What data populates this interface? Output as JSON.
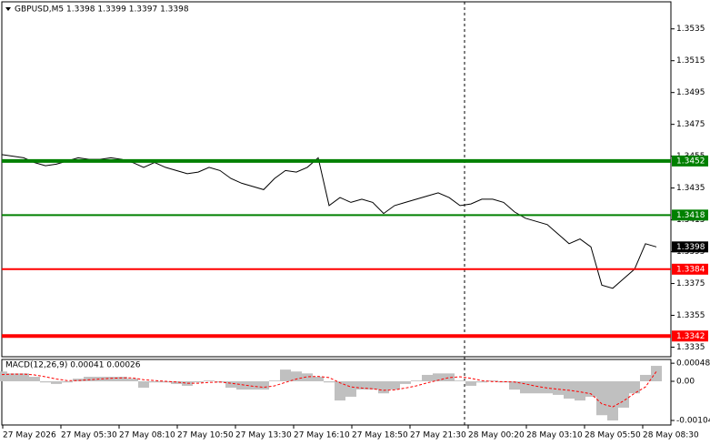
{
  "chart_data": [
    {
      "type": "line",
      "title": "GBPUSD,M5  1.3398 1.3399 1.3397 1.3398",
      "color": "#000000",
      "values": [
        1.3456,
        1.3455,
        1.3454,
        1.3451,
        1.3449,
        1.345,
        1.3452,
        1.3454,
        1.3453,
        1.3453,
        1.3454,
        1.3453,
        1.3451,
        1.3448,
        1.3451,
        1.3448,
        1.3446,
        1.3444,
        1.3445,
        1.3448,
        1.3446,
        1.3441,
        1.3438,
        1.3436,
        1.3434,
        1.3441,
        1.3446,
        1.3445,
        1.3448,
        1.3454,
        1.3424,
        1.3429,
        1.3426,
        1.3428,
        1.3426,
        1.3419,
        1.3424,
        1.3426,
        1.3428,
        1.343,
        1.3432,
        1.3429,
        1.3424,
        1.3425,
        1.3428,
        1.3428,
        1.3426,
        1.342,
        1.3416,
        1.3414,
        1.3412,
        1.3406,
        1.34,
        1.3403,
        1.3398,
        1.3374,
        1.3372,
        1.3378,
        1.3384,
        1.34,
        1.3398
      ],
      "ylim": [
        1.3329,
        1.3552
      ],
      "yticks": [
        1.3535,
        1.3515,
        1.3495,
        1.3475,
        1.3455,
        1.3435,
        1.3415,
        1.3395,
        1.3375,
        1.3355,
        1.3335
      ],
      "levels": [
        {
          "value": 1.3452,
          "color": "#008000",
          "width": 4
        },
        {
          "value": 1.3418,
          "color": "#008000",
          "width": 2
        },
        {
          "value": 1.3384,
          "color": "#ff0000",
          "width": 2
        },
        {
          "value": 1.3342,
          "color": "#ff0000",
          "width": 4
        }
      ],
      "current_price": 1.3398
    },
    {
      "type": "bar",
      "title": "MACD(12,26,9) 0.00041 0.00026",
      "color": "#c0c0c0",
      "signal_color": "#ff0000",
      "values": [
        0.00026,
        0.00021,
        0.00021,
        0.00012,
        -3e-05,
        -7e-05,
        -3e-05,
        7e-05,
        0.00012,
        0.00012,
        0.00012,
        0.00012,
        7e-05,
        -0.00017,
        -3e-05,
        -3e-05,
        -7e-05,
        -0.00012,
        -3e-05,
        2e-05,
        -3e-05,
        -0.00017,
        -0.00022,
        -0.00022,
        -0.00022,
        2e-05,
        0.00031,
        0.00026,
        0.00021,
        0.00012,
        -3e-05,
        -0.00051,
        -0.00041,
        -0.00022,
        -0.00022,
        -0.00032,
        -0.00022,
        -7e-05,
        2e-05,
        0.00017,
        0.00021,
        0.00021,
        2e-05,
        -0.00012,
        -3e-05,
        2e-05,
        -3e-05,
        -0.00022,
        -0.00032,
        -0.00032,
        -0.00032,
        -0.00036,
        -0.00046,
        -0.00051,
        -0.00041,
        -0.0009,
        -0.00104,
        -0.0007,
        -0.00032,
        0.00017,
        0.00041
      ],
      "signal": [
        0.00018,
        0.00019,
        0.00019,
        0.00017,
        0.00012,
        6e-05,
        2e-05,
        2e-05,
        4e-05,
        6e-05,
        8e-05,
        9e-05,
        9e-05,
        4e-05,
        2e-05,
        0.0,
        -2e-05,
        -5e-05,
        -5e-05,
        -3e-05,
        -2e-05,
        -5e-05,
        -9e-05,
        -0.00013,
        -0.00016,
        -0.00012,
        -3e-05,
        6e-05,
        0.00012,
        0.00013,
        0.0001,
        -4e-05,
        -0.00015,
        -0.00018,
        -0.0002,
        -0.00024,
        -0.00023,
        -0.00018,
        -0.00012,
        -4e-05,
        3e-05,
        0.0001,
        0.00012,
        8e-05,
        2e-05,
        -1e-05,
        -1e-05,
        -2e-05,
        -7e-05,
        -0.00013,
        -0.00018,
        -0.00021,
        -0.00024,
        -0.00028,
        -0.00033,
        -0.0006,
        -0.00068,
        -0.00052,
        -0.00032,
        -0.00015,
        0.00026
      ],
      "ylim": [
        -0.00116,
        0.00058
      ],
      "yticks": [
        0.00048,
        {
          "value": 0,
          "label": "0.00"
        },
        -0.00104
      ]
    }
  ],
  "time_axis": [
    "27 May 2026",
    "27 May 05:30",
    "27 May 08:10",
    "27 May 10:50",
    "27 May 13:30",
    "27 May 16:10",
    "27 May 18:50",
    "27 May 21:30",
    "28 May 00:20",
    "28 May 03:10",
    "28 May 05:50",
    "28 May 08:30"
  ]
}
